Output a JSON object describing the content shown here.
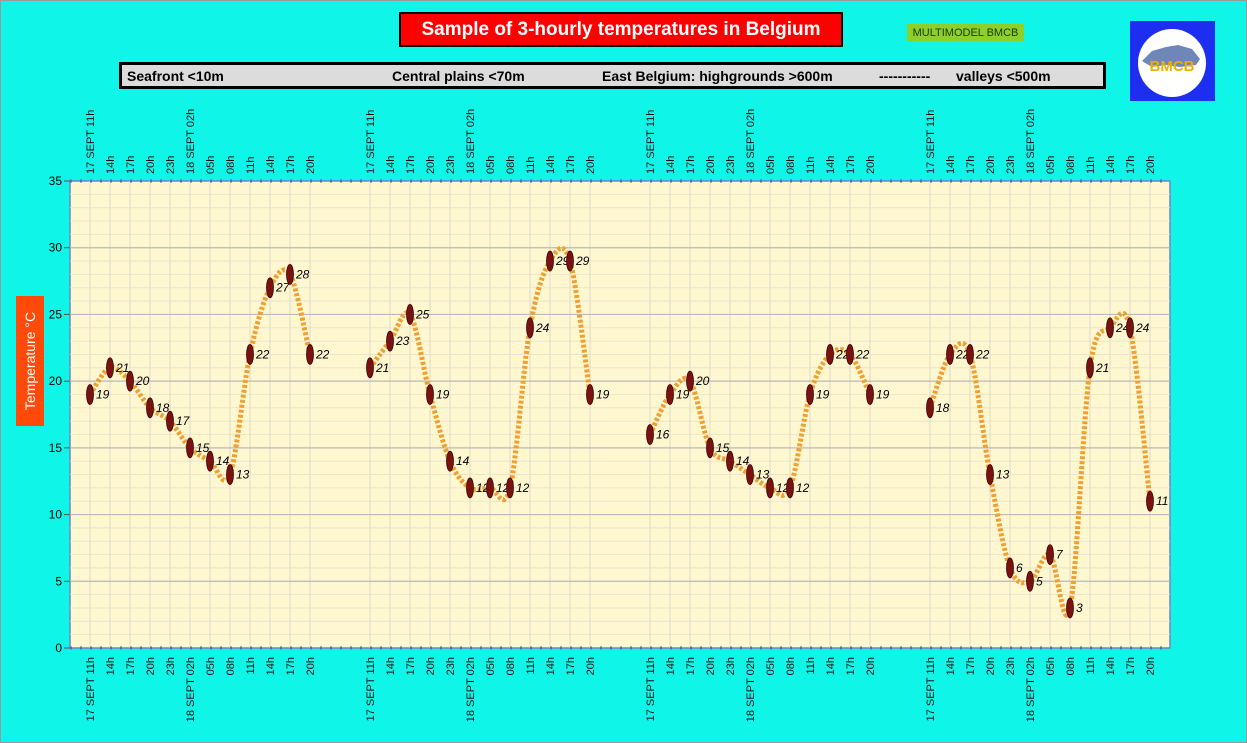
{
  "title": "Sample of 3-hourly temperatures in Belgium",
  "badge": "MULTIMODEL BMCB",
  "logo_text": "BMCB",
  "regions": [
    "Seafront <10m",
    "Central plains <70m",
    "East Belgium: highgrounds >600m",
    "-----------",
    "valleys <500m"
  ],
  "ylabel": "Temperature   °C",
  "colors": {
    "background": "#0ff5e8",
    "plot_area": "#fff7d0",
    "curve": "#f0a030",
    "marker": "#7a1212",
    "title_bg": "#ff0000",
    "ylabel_bg": "#ff4a0a",
    "logo_bg": "#1d2ef0",
    "badge_bg": "#8ed02a"
  },
  "chart_data": {
    "type": "line",
    "ylim": [
      0,
      35
    ],
    "yticks": [
      "0",
      "5",
      "10",
      "15",
      "20",
      "25",
      "30",
      "35"
    ],
    "grid": true,
    "categories": [
      "17 SEPT 11h",
      "14h",
      "17h",
      "20h",
      "23h",
      "18 SEPT 02h",
      "05h",
      "08h",
      "11h",
      "14h",
      "17h",
      "20h"
    ],
    "series": [
      {
        "name": "Seafront <10m",
        "values": [
          19,
          21,
          20,
          18,
          17,
          15,
          14,
          13,
          22,
          27,
          28,
          22
        ]
      },
      {
        "name": "Central plains <70m",
        "values": [
          21,
          23,
          25,
          19,
          14,
          12,
          12,
          12,
          24,
          29,
          29,
          19
        ]
      },
      {
        "name": "East Belgium: highgrounds >600m",
        "values": [
          16,
          19,
          20,
          15,
          14,
          13,
          12,
          12,
          19,
          22,
          22,
          19
        ]
      },
      {
        "name": "valleys <500m",
        "values": [
          18,
          22,
          22,
          13,
          6,
          5,
          7,
          3,
          21,
          24,
          24,
          11
        ]
      }
    ]
  }
}
